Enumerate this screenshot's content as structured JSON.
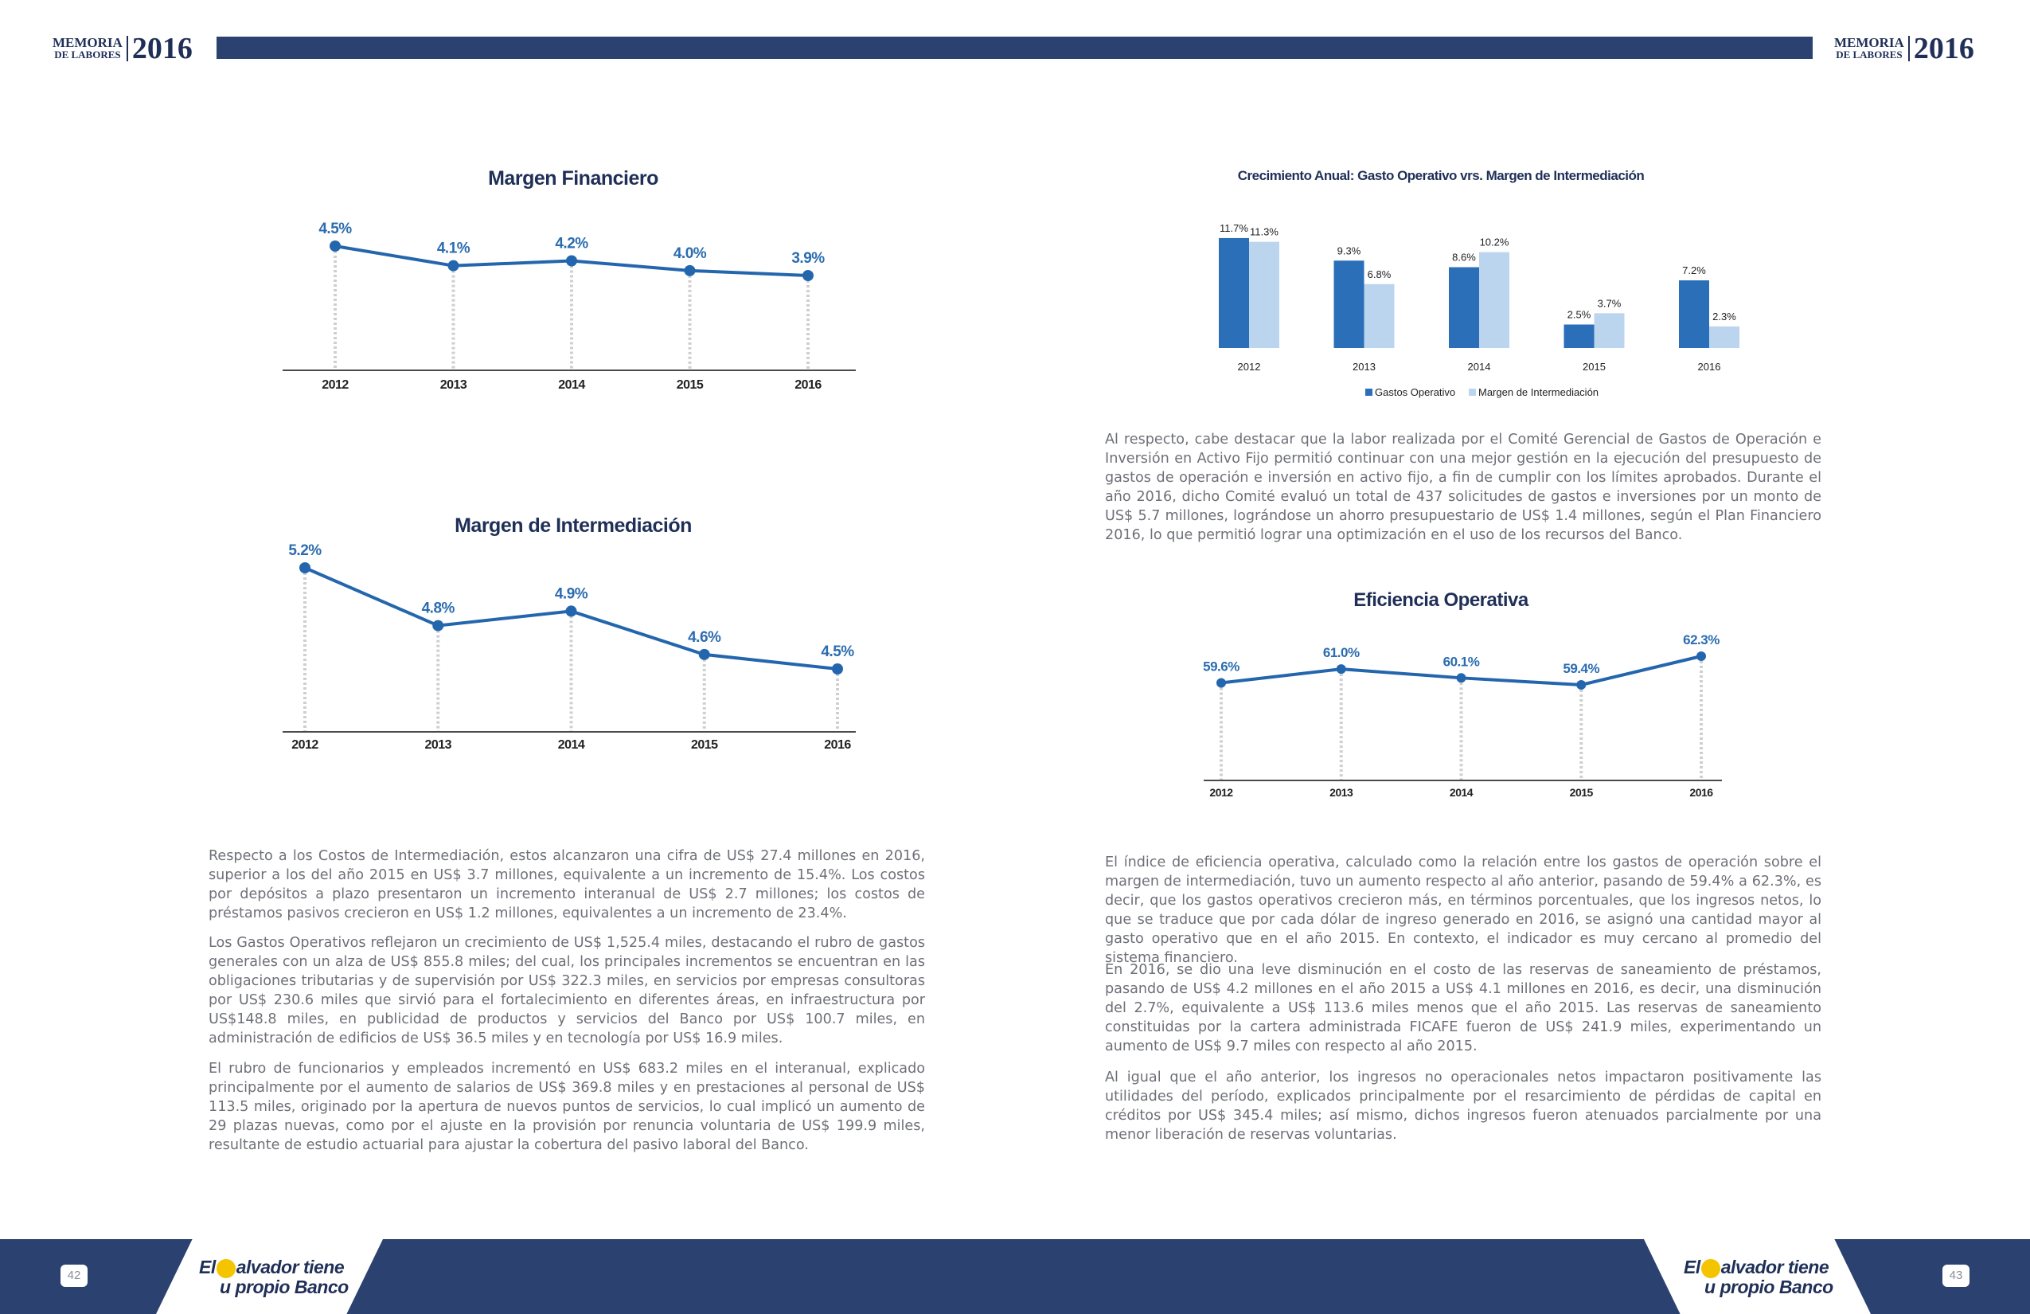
{
  "header": {
    "memoria": "MEMORIA",
    "de_labores": "DE LABORES",
    "year": "2016"
  },
  "footer": {
    "left_page": "42",
    "right_page": "43",
    "slogan_line1_a": "El",
    "slogan_line1_b": "alvador tiene",
    "slogan_line2": "u propio Banco"
  },
  "colors": {
    "navy": "#2b4270",
    "line_blue": "#2466ad",
    "bar_dark": "#2a6fb7",
    "bar_light": "#bcd5ee"
  },
  "chart_data": [
    {
      "id": "margen-financiero",
      "type": "line",
      "title": "Margen Financiero",
      "categories": [
        "2012",
        "2013",
        "2014",
        "2015",
        "2016"
      ],
      "values": [
        4.5,
        4.1,
        4.2,
        4.0,
        3.9
      ],
      "value_labels": [
        "4.5%",
        "4.1%",
        "4.2%",
        "4.0%",
        "3.9%"
      ],
      "unit": "%",
      "grid": false
    },
    {
      "id": "margen-intermediacion",
      "type": "line",
      "title": "Margen de Intermediación",
      "categories": [
        "2012",
        "2013",
        "2014",
        "2015",
        "2016"
      ],
      "values": [
        5.2,
        4.8,
        4.9,
        4.6,
        4.5
      ],
      "value_labels": [
        "5.2%",
        "4.8%",
        "4.9%",
        "4.6%",
        "4.5%"
      ],
      "unit": "%",
      "grid": false
    },
    {
      "id": "crecimiento-anual",
      "type": "bar",
      "title": "Crecimiento Anual: Gasto Operativo vrs. Margen de  Intermediación",
      "categories": [
        "2012",
        "2013",
        "2014",
        "2015",
        "2016"
      ],
      "series": [
        {
          "name": "Gastos Operativo",
          "values": [
            11.7,
            9.3,
            8.6,
            2.5,
            7.2
          ],
          "labels": [
            "11.7%",
            "9.3%",
            "8.6%",
            "2.5%",
            "7.2%"
          ]
        },
        {
          "name": "Margen  de  Intermediación",
          "values": [
            11.3,
            6.8,
            10.2,
            3.7,
            2.3
          ],
          "labels": [
            "11.3%",
            "6.8%",
            "10.2%",
            "3.7%",
            "2.3%"
          ]
        }
      ],
      "unit": "%",
      "legend": "bottom",
      "grid": false
    },
    {
      "id": "eficiencia-operativa",
      "type": "line",
      "title": "Eficiencia Operativa",
      "categories": [
        "2012",
        "2013",
        "2014",
        "2015",
        "2016"
      ],
      "values": [
        59.6,
        61.0,
        60.1,
        59.4,
        62.3
      ],
      "value_labels": [
        "59.6%",
        "61.0%",
        "60.1%",
        "59.4%",
        "62.3%"
      ],
      "unit": "%",
      "grid": false
    }
  ],
  "text": {
    "right_p1": "Al respecto, cabe destacar que la labor realizada por el Comité Gerencial de Gastos de Operación e Inversión en Activo Fijo permitió continuar con una mejor gestión en la ejecución del presupuesto de gastos de operación e inversión en activo fijo, a fin de cumplir con los límites aprobados. Durante el año 2016, dicho Comité evaluó un total de 437 solicitudes de gastos e inversiones por un monto de US$ 5.7 millones, lográndose un ahorro presupuestario de US$ 1.4 millones, según el Plan Financiero 2016, lo que permitió lograr una optimización en el uso de los recursos del Banco.",
    "left_p1": "Respecto a los Costos de Intermediación, estos alcanzaron una cifra de US$ 27.4 millones en 2016, superior a los del año 2015 en US$ 3.7 millones, equivalente a un incremento de 15.4%. Los costos por depósitos a plazo presentaron un incremento interanual de US$ 2.7 millones; los costos de préstamos pasivos crecieron en US$ 1.2 millones, equivalentes a un incremento de 23.4%.",
    "left_p2": "Los Gastos Operativos reflejaron un crecimiento de US$ 1,525.4 miles, destacando el rubro de gastos generales con un alza de US$ 855.8 miles; del cual, los principales incrementos se encuentran en las obligaciones tributarias y de supervisión por US$ 322.3 miles, en servicios por empresas consultoras por US$ 230.6 miles que sirvió para el fortalecimiento en diferentes áreas, en infraestructura por US$148.8 miles, en publicidad de productos y servicios del Banco por  US$ 100.7 miles, en administración de edificios de US$ 36.5 miles y en tecnología por US$ 16.9 miles.",
    "left_p3": "El rubro de funcionarios y empleados incrementó en US$ 683.2 miles en el interanual, explicado principalmente por el aumento de salarios de US$ 369.8 miles y en prestaciones al personal de US$ 113.5 miles, originado por la apertura de nuevos puntos de servicios, lo cual implicó un aumento de 29 plazas nuevas, como por el ajuste en la provisión por renuncia voluntaria de US$ 199.9 miles, resultante de estudio actuarial para ajustar la cobertura del pasivo laboral del Banco.",
    "right_p2": "El índice de eficiencia operativa, calculado como la relación entre los gastos de operación sobre el margen de intermediación, tuvo un aumento respecto al año anterior, pasando de 59.4% a 62.3%, es decir, que los gastos operativos crecieron más, en términos porcentuales, que los ingresos netos, lo que se traduce que por cada dólar de ingreso generado en 2016, se asignó una cantidad mayor al gasto operativo que en el año 2015. En contexto, el  indicador es muy cercano al promedio del sistema financiero.",
    "right_p3": "En 2016, se dio una leve disminución en el costo de las reservas de saneamiento de préstamos, pasando de US$ 4.2 millones en el año 2015 a US$ 4.1 millones en 2016, es decir, una disminución del 2.7%, equivalente a US$ 113.6 miles menos que el año 2015. Las reservas de saneamiento constituidas por la cartera administrada FICAFE fueron de US$ 241.9 miles, experimentando un aumento de US$ 9.7 miles con respecto al año 2015.",
    "right_p4": "Al igual que el año anterior, los ingresos no operacionales netos impactaron positivamente las utilidades del período, explicados principalmente por el resarcimiento de pérdidas de capital en créditos por US$ 345.4 miles; así mismo, dichos ingresos fueron atenuados parcialmente por una menor liberación de reservas voluntarias."
  }
}
